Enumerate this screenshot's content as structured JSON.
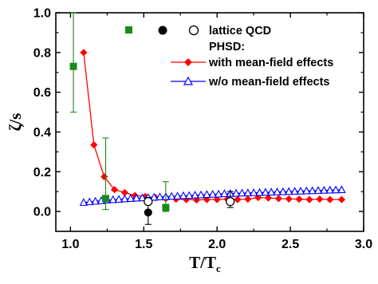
{
  "chart_data": {
    "type": "scatter",
    "xlabel_main": "T/T",
    "xlabel_sub": "c",
    "ylabel": "ζ/s",
    "xlim": [
      0.9,
      3.0
    ],
    "ylim": [
      -0.1,
      1.0
    ],
    "xticks": [
      1.0,
      1.5,
      2.0,
      2.5,
      3.0
    ],
    "xtick_labels": [
      "1.0",
      "1.5",
      "2.0",
      "2.5",
      "3.0"
    ],
    "yticks": [
      0.0,
      0.2,
      0.4,
      0.6,
      0.8,
      1.0
    ],
    "ytick_labels": [
      "0.0",
      "0.2",
      "0.4",
      "0.6",
      "0.8",
      "1.0"
    ],
    "legend": {
      "lattice_label": "lattice QCD",
      "phsd_label": "PHSD:",
      "entries": [
        "with mean-field effects",
        "w/o mean-field effects"
      ]
    },
    "series": [
      {
        "name": "with mean-field effects",
        "color": "#ff0000",
        "marker": "diamond-filled",
        "line": true,
        "x": [
          1.09,
          1.16,
          1.23,
          1.3,
          1.37,
          1.44,
          1.51,
          1.58,
          1.65,
          1.72,
          1.79,
          1.86,
          1.93,
          2.0,
          2.07,
          2.14,
          2.21,
          2.28,
          2.35,
          2.42,
          2.49,
          2.56,
          2.63,
          2.7,
          2.77,
          2.85
        ],
        "y": [
          0.8,
          0.335,
          0.175,
          0.11,
          0.095,
          0.08,
          0.075,
          0.07,
          0.065,
          0.062,
          0.06,
          0.058,
          0.06,
          0.06,
          0.062,
          0.06,
          0.062,
          0.07,
          0.068,
          0.065,
          0.063,
          0.062,
          0.06,
          0.062,
          0.06,
          0.06
        ]
      },
      {
        "name": "w/o mean-field effects",
        "color": "#0000ff",
        "marker": "triangle-open",
        "line": true,
        "x": [
          1.09,
          1.13,
          1.17,
          1.21,
          1.25,
          1.29,
          1.33,
          1.37,
          1.41,
          1.45,
          1.49,
          1.53,
          1.57,
          1.61,
          1.65,
          1.69,
          1.73,
          1.77,
          1.81,
          1.85,
          1.89,
          1.93,
          1.97,
          2.01,
          2.05,
          2.09,
          2.13,
          2.17,
          2.21,
          2.25,
          2.29,
          2.33,
          2.37,
          2.41,
          2.45,
          2.49,
          2.53,
          2.57,
          2.61,
          2.65,
          2.69,
          2.73,
          2.77,
          2.81,
          2.85
        ],
        "y": [
          0.045,
          0.048,
          0.051,
          0.054,
          0.057,
          0.059,
          0.061,
          0.063,
          0.065,
          0.067,
          0.068,
          0.07,
          0.071,
          0.073,
          0.074,
          0.076,
          0.077,
          0.079,
          0.08,
          0.082,
          0.083,
          0.085,
          0.086,
          0.087,
          0.089,
          0.09,
          0.091,
          0.092,
          0.093,
          0.094,
          0.095,
          0.096,
          0.097,
          0.098,
          0.099,
          0.1,
          0.101,
          0.102,
          0.103,
          0.104,
          0.105,
          0.106,
          0.107,
          0.108,
          0.109
        ]
      },
      {
        "name": "lattice QCD (green)",
        "color": "#1a8a1a",
        "marker": "square-filled",
        "line": false,
        "points": [
          {
            "x": 1.02,
            "y": 0.73,
            "ylo": 0.5,
            "yhi": 1.0
          },
          {
            "x": 1.24,
            "y": 0.065,
            "ylo": 0.01,
            "yhi": 0.37
          },
          {
            "x": 1.65,
            "y": 0.02,
            "ylo": 0.0,
            "yhi": 0.15
          }
        ]
      },
      {
        "name": "lattice QCD (black filled)",
        "color": "#000000",
        "marker": "circle-filled",
        "line": false,
        "points": [
          {
            "x": 1.53,
            "y": -0.005,
            "ylo": -0.065,
            "yhi": 0.055
          }
        ]
      },
      {
        "name": "lattice QCD (open)",
        "color": "#000000",
        "marker": "circle-open",
        "line": false,
        "points": [
          {
            "x": 1.53,
            "y": 0.05,
            "ylo": 0.05,
            "yhi": 0.05
          },
          {
            "x": 2.09,
            "y": 0.05,
            "ylo": 0.02,
            "yhi": 0.1
          }
        ]
      }
    ]
  }
}
